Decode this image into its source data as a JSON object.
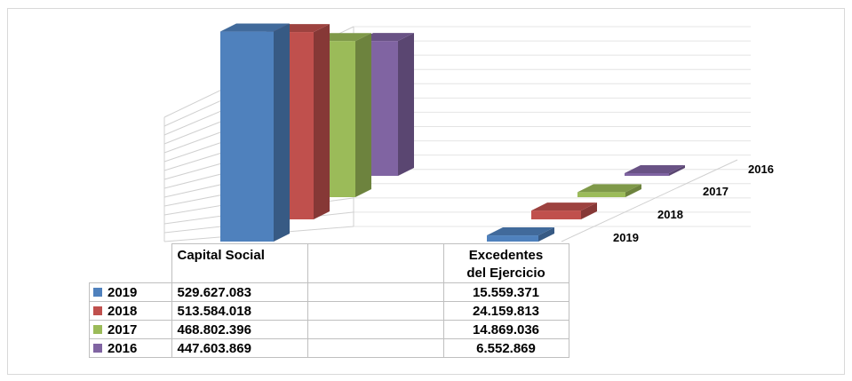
{
  "chart_data": {
    "type": "bar",
    "categories": [
      "Capital Social",
      "Excedentes del Ejercicio"
    ],
    "series": [
      {
        "name": "2019",
        "color": "#4f81bd",
        "values": [
          529627083,
          15559371
        ],
        "labels": [
          "529.627.083",
          "15.559.371"
        ]
      },
      {
        "name": "2018",
        "color": "#c0504d",
        "values": [
          513584018,
          24159813
        ],
        "labels": [
          "513.584.018",
          "24.159.813"
        ]
      },
      {
        "name": "2017",
        "color": "#9bbb59",
        "values": [
          468802396,
          14869036
        ],
        "labels": [
          "468.802.396",
          "14.869.036"
        ]
      },
      {
        "name": "2016",
        "color": "#8064a2",
        "values": [
          447603869,
          6552869
        ],
        "labels": [
          "447.603.869",
          "6.552.869"
        ]
      }
    ],
    "style": "3d-clustered-with-data-table",
    "grid": true,
    "legend": "data-table"
  },
  "table": {
    "col1_header": "Capital Social",
    "col2_header_line1": "Excedentes",
    "col2_header_line2": "del Ejercicio"
  },
  "depth_axis": [
    "2019",
    "2018",
    "2017",
    "2016"
  ]
}
